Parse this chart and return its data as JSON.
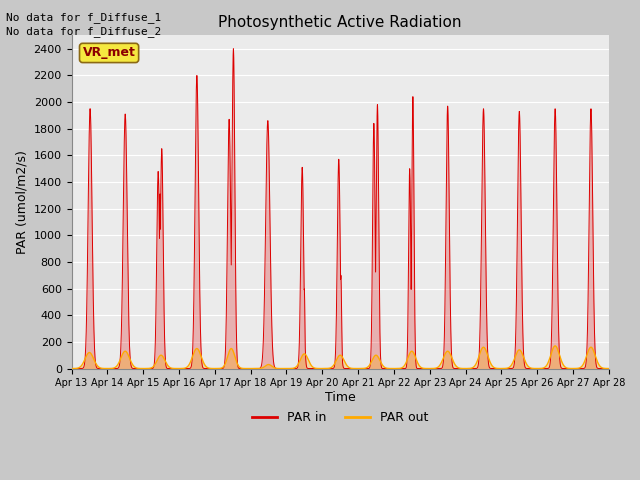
{
  "title": "Photosynthetic Active Radiation",
  "ylabel": "PAR (umol/m2/s)",
  "xlabel": "Time",
  "ylim": [
    0,
    2500
  ],
  "yticks": [
    0,
    200,
    400,
    600,
    800,
    1000,
    1200,
    1400,
    1600,
    1800,
    2000,
    2200,
    2400
  ],
  "plot_bg_color": "#ebebeb",
  "fig_bg_color": "#d0d0d0",
  "par_in_color": "#dd0000",
  "par_out_color": "#ffaa00",
  "text_annotations": [
    "No data for f_Diffuse_1",
    "No data for f_Diffuse_2"
  ],
  "legend_label_in": "PAR in",
  "legend_label_out": "PAR out",
  "vr_met_label": "VR_met",
  "n_days": 15,
  "start_day": 13,
  "figsize": [
    6.4,
    4.8
  ],
  "dpi": 100
}
